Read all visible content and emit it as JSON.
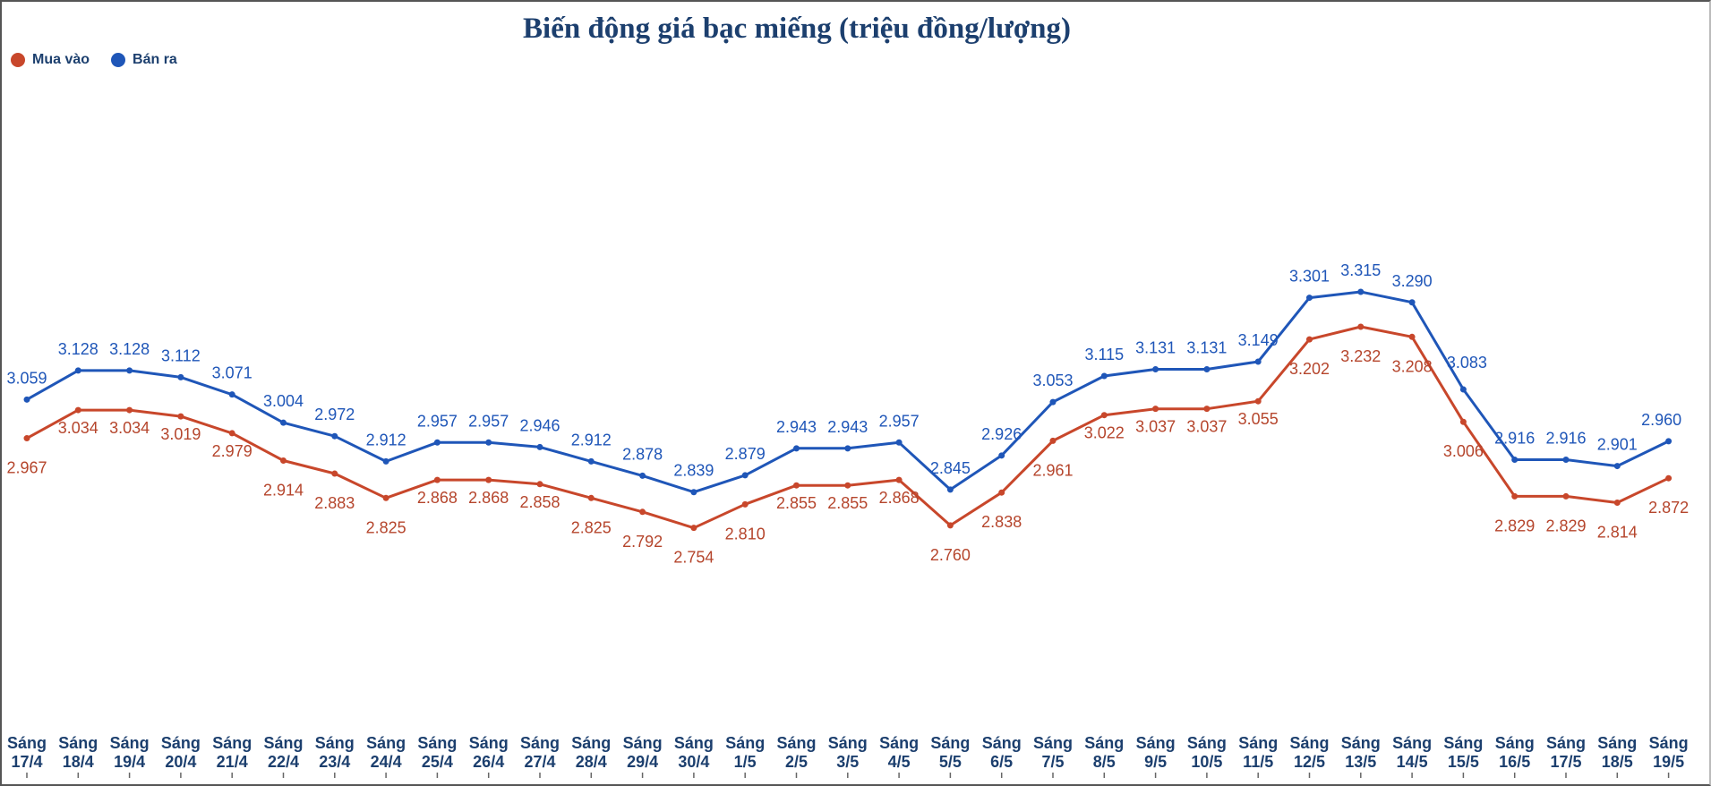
{
  "chart_data": {
    "type": "line",
    "title": "Biến động giá bạc miếng (triệu đồng/lượng)",
    "xlabel": "",
    "ylabel": "",
    "legend_position": "top-left",
    "grid": false,
    "categories": [
      [
        "Sáng",
        "17/4"
      ],
      [
        "Sáng",
        "18/4"
      ],
      [
        "Sáng",
        "19/4"
      ],
      [
        "Sáng",
        "20/4"
      ],
      [
        "Sáng",
        "21/4"
      ],
      [
        "Sáng",
        "22/4"
      ],
      [
        "Sáng",
        "23/4"
      ],
      [
        "Sáng",
        "24/4"
      ],
      [
        "Sáng",
        "25/4"
      ],
      [
        "Sáng",
        "26/4"
      ],
      [
        "Sáng",
        "27/4"
      ],
      [
        "Sáng",
        "28/4"
      ],
      [
        "Sáng",
        "29/4"
      ],
      [
        "Sáng",
        "30/4"
      ],
      [
        "Sáng",
        "1/5"
      ],
      [
        "Sáng",
        "2/5"
      ],
      [
        "Sáng",
        "3/5"
      ],
      [
        "Sáng",
        "4/5"
      ],
      [
        "Sáng",
        "5/5"
      ],
      [
        "Sáng",
        "6/5"
      ],
      [
        "Sáng",
        "7/5"
      ],
      [
        "Sáng",
        "8/5"
      ],
      [
        "Sáng",
        "9/5"
      ],
      [
        "Sáng",
        "10/5"
      ],
      [
        "Sáng",
        "11/5"
      ],
      [
        "Sáng",
        "12/5"
      ],
      [
        "Sáng",
        "13/5"
      ],
      [
        "Sáng",
        "14/5"
      ],
      [
        "Sáng",
        "15/5"
      ],
      [
        "Sáng",
        "16/5"
      ],
      [
        "Sáng",
        "17/5"
      ],
      [
        "Sáng",
        "18/5"
      ],
      [
        "Sáng",
        "19/5"
      ]
    ],
    "series": [
      {
        "name": "Mua vào",
        "color": "#c8472b",
        "label_color": "#b5452c",
        "values": [
          2.967,
          3.034,
          3.034,
          3.019,
          2.979,
          2.914,
          2.883,
          2.825,
          2.868,
          2.868,
          2.858,
          2.825,
          2.792,
          2.754,
          2.81,
          2.855,
          2.855,
          2.868,
          2.76,
          2.838,
          2.961,
          3.022,
          3.037,
          3.037,
          3.055,
          3.202,
          3.232,
          3.208,
          3.006,
          2.829,
          2.829,
          2.814,
          2.872
        ],
        "labels": [
          "2.967",
          "3.034",
          "3.034",
          "3.019",
          "2.979",
          "2.914",
          "2.883",
          "2.825",
          "2.868",
          "2.868",
          "2.858",
          "2.825",
          "2.792",
          "2.754",
          "2.810",
          "2.855",
          "2.855",
          "2.868",
          "2.760",
          "2.838",
          "2.961",
          "3.022",
          "3.037",
          "3.037",
          "3.055",
          "3.202",
          "3.232",
          "3.208",
          "3.006",
          "2.829",
          "2.829",
          "2.814",
          "2.872"
        ]
      },
      {
        "name": "Bán ra",
        "color": "#1f56b8",
        "label_color": "#1f56b8",
        "values": [
          3.059,
          3.128,
          3.128,
          3.112,
          3.071,
          3.004,
          2.972,
          2.912,
          2.957,
          2.957,
          2.946,
          2.912,
          2.878,
          2.839,
          2.879,
          2.943,
          2.943,
          2.957,
          2.845,
          2.926,
          3.053,
          3.115,
          3.131,
          3.131,
          3.149,
          3.301,
          3.315,
          3.29,
          3.083,
          2.916,
          2.916,
          2.901,
          2.96
        ],
        "labels": [
          "3.059",
          "3.128",
          "3.128",
          "3.112",
          "3.071",
          "3.004",
          "2.972",
          "2.912",
          "2.957",
          "2.957",
          "2.946",
          "2.912",
          "2.878",
          "2.839",
          "2.879",
          "2.943",
          "2.943",
          "2.957",
          "2.845",
          "2.926",
          "3.053",
          "3.115",
          "3.131",
          "3.131",
          "3.149",
          "3.301",
          "3.315",
          "3.290",
          "3.083",
          "2.916",
          "2.916",
          "2.901",
          "2.960"
        ]
      }
    ]
  }
}
